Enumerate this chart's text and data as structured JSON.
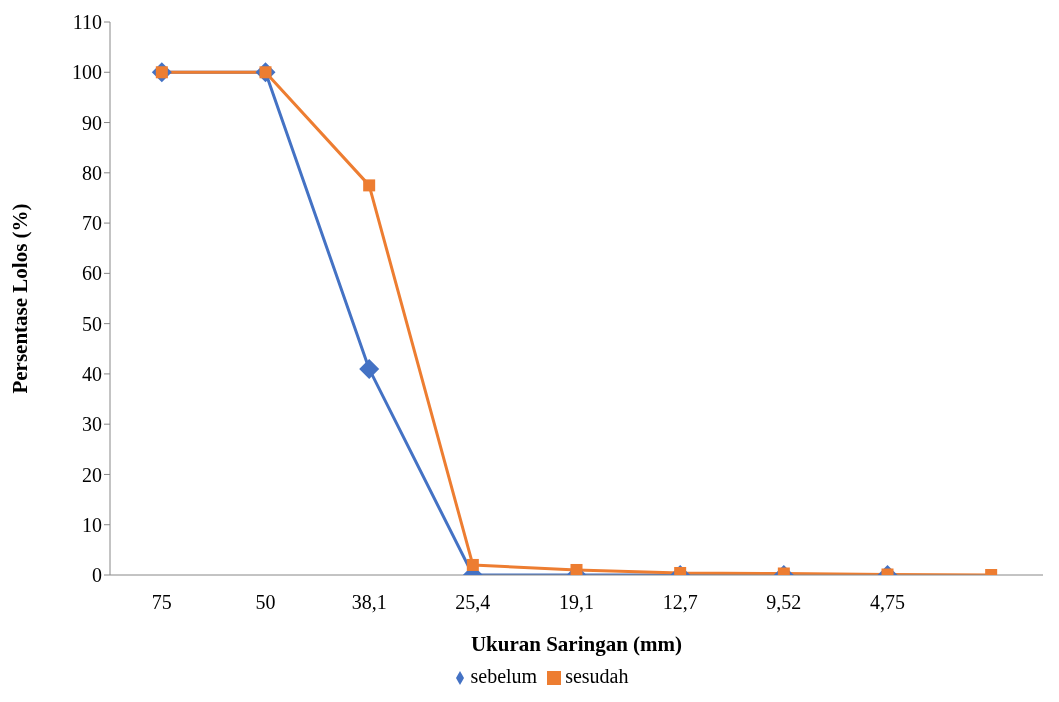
{
  "chart_data": {
    "type": "line",
    "xlabel": "Ukuran Saringan (mm)",
    "ylabel": "Persentase Lolos (%)",
    "categories": [
      "75",
      "50",
      "38,1",
      "25,4",
      "19,1",
      "12,7",
      "9,52",
      "4,75",
      null
    ],
    "series": [
      {
        "name": "sebelum",
        "color": "#4472c4",
        "marker": "diamond",
        "values": [
          100,
          100,
          41,
          0,
          0,
          0,
          0,
          0,
          null
        ]
      },
      {
        "name": "sesudah",
        "color": "#ed7d31",
        "marker": "square",
        "values": [
          100,
          100,
          77.5,
          2,
          1,
          0.4,
          0.3,
          0.1,
          0
        ]
      }
    ],
    "ylim": [
      0,
      110
    ],
    "yticks": [
      0,
      10,
      20,
      30,
      40,
      50,
      60,
      70,
      80,
      90,
      100,
      110
    ],
    "grid": false,
    "legend": "bottom",
    "line_style": "solid"
  }
}
